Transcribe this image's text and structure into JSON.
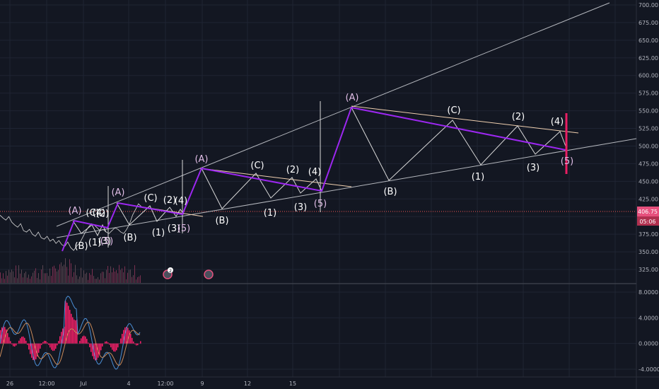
{
  "colors": {
    "background": "#131722",
    "grid": "#1f2433",
    "price_line": "#d8d8d8",
    "wave_purple": "#9c27f0",
    "channel": "#b4b7bd",
    "trendline": "#f0d0b0",
    "current_price": "#ef5350",
    "badge_pink": "#e6507d",
    "macd_blue": "#4a8fd6",
    "macd_orange": "#c98a5a",
    "hist_pink": "#ff1f6b"
  },
  "price_axis": {
    "ticks": [
      "700.00",
      "675.00",
      "650.00",
      "625.00",
      "600.00",
      "575.00",
      "550.00",
      "525.00",
      "500.00",
      "475.00",
      "450.00",
      "425.00",
      "400.00",
      "375.00",
      "350.00",
      "325.00"
    ],
    "current_price": "406.75",
    "countdown": "05:06"
  },
  "macd_axis": {
    "ticks": [
      "8.0000",
      "4.0000",
      "0.0000",
      "-4.0000"
    ]
  },
  "time_axis": {
    "ticks": [
      "26",
      "12:00",
      "Jul",
      "4",
      "12:00",
      "9",
      "12",
      "15"
    ]
  },
  "event_badges": [
    "2",
    ""
  ],
  "chart_data": {
    "type": "line",
    "title": "",
    "price_range": [
      300,
      700
    ],
    "macd_range": [
      -4,
      8
    ],
    "wave_labels": [
      "(A)",
      "(B)",
      "(C)",
      "(1)",
      "(2)",
      "(3)",
      "(4)",
      "(5)",
      "(A)",
      "(B)",
      "(C)",
      "(1)",
      "(2)",
      "(3)",
      "(4)",
      "(5)",
      "(A)",
      "(B)",
      "(C)",
      "(1)",
      "(2)",
      "(3)",
      "(4)",
      "(5)",
      "(A)",
      "(B)",
      "(C)",
      "(1)",
      "(2)",
      "(3)",
      "(4)",
      "(5)"
    ],
    "price_series": [
      402,
      398,
      395,
      400,
      392,
      388,
      385,
      390,
      380,
      378,
      382,
      375,
      372,
      378,
      370,
      368,
      372,
      365,
      368,
      362,
      366,
      360,
      358,
      364,
      356,
      352,
      358,
      362,
      370,
      378,
      385,
      390,
      388,
      384,
      380,
      382,
      378,
      376,
      380,
      384,
      382,
      378,
      376,
      382,
      390,
      402,
      410,
      418,
      414
    ]
  }
}
